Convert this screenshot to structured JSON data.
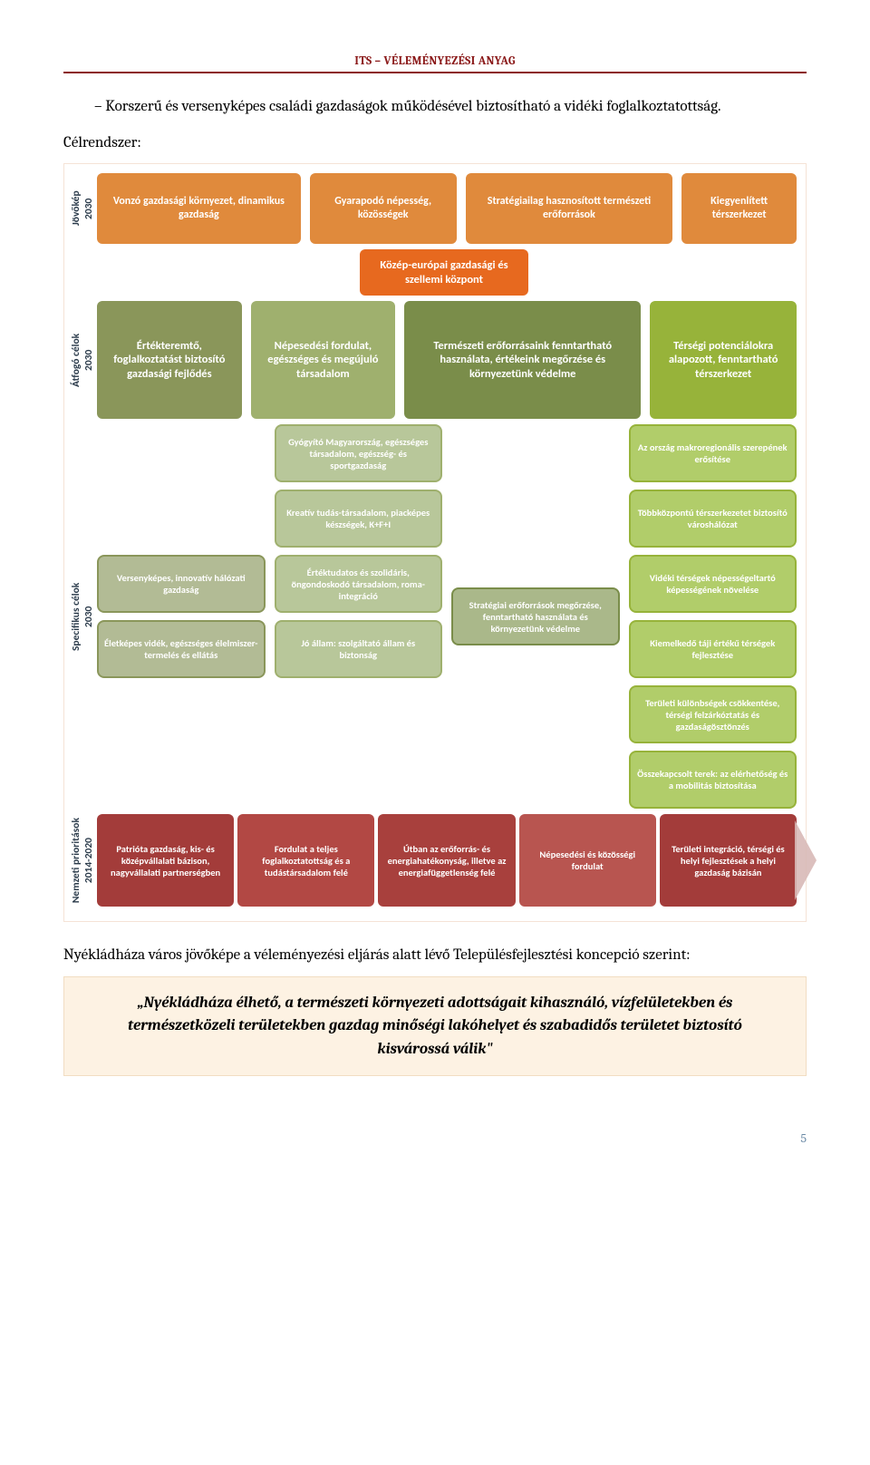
{
  "colors": {
    "headerRule": "#8b1a1a",
    "headerText": "#8b1a1a",
    "highlightBg": "#fdf2e3",
    "highlightBorder": "#f2ddc2",
    "pageNum": "#6b8aa6",
    "text": "#000000"
  },
  "header": "ITS – VÉLEMÉNYEZÉSI ANYAG",
  "bullet": "Korszerű és versenyképes családi gazdaságok működésével biztosítható a vidéki foglalkoztatottság.",
  "celrendszer": "Célrendszer:",
  "diagram": {
    "rowLabels": {
      "jovokep": "Jövőkép\n2030",
      "atfogo": "Átfogó célok\n2030",
      "specifikus": "Specifikus célok\n2030",
      "prior": "Nemzeti prioritások\n2014-2020"
    },
    "labelColor": "#2a3a4a",
    "jovokep": {
      "bg": "#e08a3c",
      "items": [
        "Vonzó gazdasági környezet, dinamikus gazdaság",
        "Gyarapodó népesség, közösségek",
        "Stratégiailag hasznosított természeti erőforrások",
        "Kiegyenlített térszerkezet"
      ]
    },
    "center": {
      "bg": "#e7691f",
      "text": "Közép-európai gazdasági és szellemi központ"
    },
    "atfogo": {
      "bg": [
        "#8a965a",
        "#9fb06e",
        "#7a8d4a",
        "#97b33a"
      ],
      "items": [
        "Értékteremtő, foglalkoztatást biztosító gazdasági fejlődés",
        "Népesedési fordulat, egészséges és megújuló társadalom",
        "Természeti erőforrásaink fenntartható használata, értékeink megőrzése és környezetünk védelme",
        "Térségi potenciálokra alapozott, fenntartható térszerkezet"
      ]
    },
    "specifikus": {
      "columns": [
        {
          "bg": "#b2bb95",
          "border": "#8a965a",
          "items": [
            "Versenyképes, innovatív hálózati gazdaság",
            "Életképes vidék, egészséges élelmiszer-termelés és ellátás"
          ]
        },
        {
          "bg": "#b8c79a",
          "border": "#9fb06e",
          "items": [
            "Gyógyító Magyarország, egészséges társadalom, egészség- és sportgazdaság",
            "Kreatív tudás-társadalom, piacképes készségek, K+F+I",
            "Értéktudatos és szolidáris, öngondoskodó társadalom, roma-integráció",
            "Jó állam: szolgáltató állam és biztonság"
          ]
        },
        {
          "bg": "#aab88a",
          "border": "#7a8d4a",
          "items": [
            "Stratégiai erőforrások megőrzése, fenntartható használata és környezetünk védelme"
          ]
        },
        {
          "bg": "#b1cd6a",
          "border": "#97b33a",
          "items": [
            "Az ország makroregionális szerepének erősítése",
            "Többközpontú térszerkezetet biztosító városhálózat",
            "Vidéki térségek népességeltartó képességének növelése",
            "Kiemelkedő táji értékű térségek fejlesztése",
            "Területi különbségek csökkentése, térségi felzárkóztatás és gazdaságösztönzés",
            "Összekapcsolt terek: az elérhetőség és a mobilitás biztosítása"
          ]
        }
      ]
    },
    "prior": {
      "bg": [
        "#a33c3a",
        "#b24844",
        "#a8403d",
        "#b85550",
        "#a33c3a"
      ],
      "items": [
        "Patrióta gazdaság, kis- és középvállalati bázison, nagyvállalati partnerségben",
        "Fordulat a teljes foglalkoztatottság és a tudástársadalom felé",
        "Útban az erőforrás- és energiahatékonyság, illetve az energiafüggetlenség felé",
        "Népesedési és közösségi fordulat",
        "Területi integráció, térségi és helyi fejlesztések a helyi gazdaság bázisán"
      ]
    }
  },
  "afterDiagram": "Nyékládháza város jövőképe a véleményezési eljárás alatt lévő Településfejlesztési koncepció szerint:",
  "highlight": "„Nyékládháza élhető, a természeti környezeti adottságait kihasználó, vízfelületekben és természetközeli területekben gazdag minőségi lakóhelyet és szabadidős területet biztosító kisvárossá válik\"",
  "pageNum": "5"
}
